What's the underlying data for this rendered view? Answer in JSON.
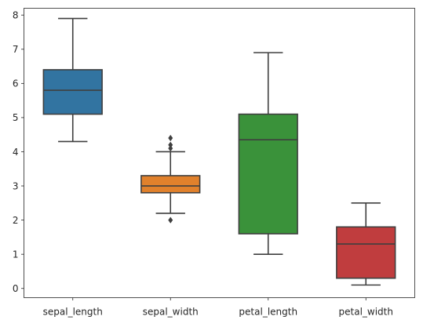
{
  "chart_data": {
    "type": "box",
    "title": "",
    "xlabel": "",
    "ylabel": "",
    "ylim": [
      -0.27,
      8.2
    ],
    "yticks": [
      0,
      1,
      2,
      3,
      4,
      5,
      6,
      7,
      8
    ],
    "grid": false,
    "legend": "none",
    "categories": [
      "sepal_length",
      "sepal_width",
      "petal_length",
      "petal_width"
    ],
    "boxes": [
      {
        "category": "sepal_length",
        "color": "#3274a1",
        "whisker_low": 4.3,
        "q1": 5.1,
        "median": 5.8,
        "q3": 6.4,
        "whisker_high": 7.9,
        "outliers": []
      },
      {
        "category": "sepal_width",
        "color": "#e1812c",
        "whisker_low": 2.2,
        "q1": 2.8,
        "median": 3.0,
        "q3": 3.3,
        "whisker_high": 4.0,
        "outliers": [
          4.1,
          4.2,
          4.4,
          2.0
        ]
      },
      {
        "category": "petal_length",
        "color": "#3a923a",
        "whisker_low": 1.0,
        "q1": 1.6,
        "median": 4.35,
        "q3": 5.1,
        "whisker_high": 6.9,
        "outliers": []
      },
      {
        "category": "petal_width",
        "color": "#c03d3e",
        "whisker_low": 0.1,
        "q1": 0.3,
        "median": 1.3,
        "q3": 1.8,
        "whisker_high": 2.5,
        "outliers": []
      }
    ]
  }
}
